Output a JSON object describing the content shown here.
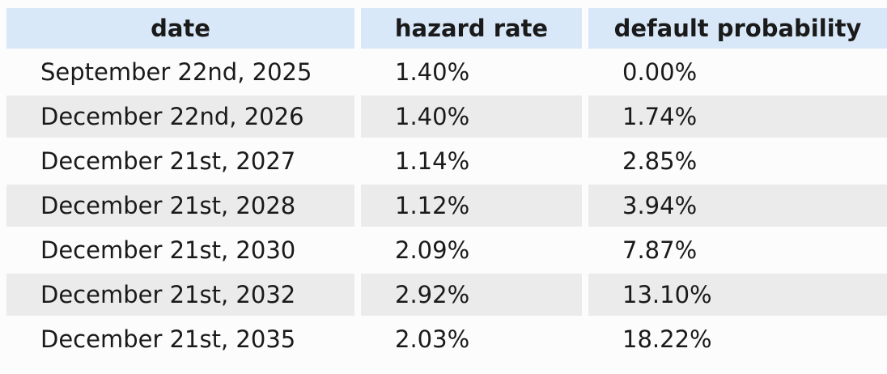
{
  "colors": {
    "page_bg": "#fcfcfc",
    "header_bg": "#d9e8f8",
    "alt_row_bg": "#ebebeb",
    "text": "#1a1a1a"
  },
  "chart_data": {
    "type": "table",
    "columns": [
      "date",
      "hazard rate",
      "default probability"
    ],
    "rows": [
      [
        "September 22nd, 2025",
        "1.40%",
        "0.00%"
      ],
      [
        "December 22nd, 2026",
        "1.40%",
        "1.74%"
      ],
      [
        "December 21st, 2027",
        "1.14%",
        "2.85%"
      ],
      [
        "December 21st, 2028",
        "1.12%",
        "3.94%"
      ],
      [
        "December 21st, 2030",
        "2.09%",
        "7.87%"
      ],
      [
        "December 21st, 2032",
        "2.92%",
        "13.10%"
      ],
      [
        "December 21st, 2035",
        "2.03%",
        "18.22%"
      ]
    ],
    "hazard_rate_values_pct": [
      1.4,
      1.4,
      1.14,
      1.12,
      2.09,
      2.92,
      2.03
    ],
    "default_probability_values_pct": [
      0.0,
      1.74,
      2.85,
      3.94,
      7.87,
      13.1,
      18.22
    ],
    "layout_hints": {
      "header_centered": true,
      "data_left_aligned": true,
      "alternating_row_shading": true
    }
  }
}
